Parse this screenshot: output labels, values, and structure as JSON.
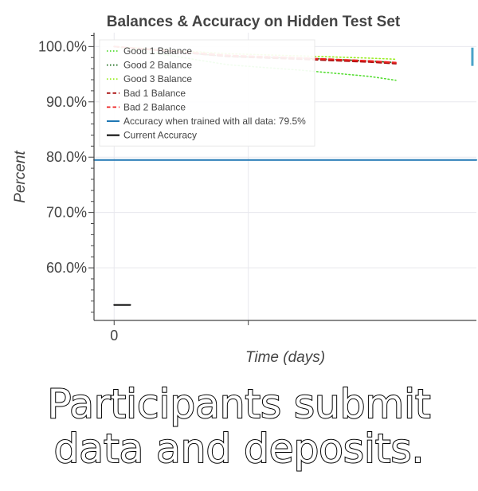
{
  "caption": {
    "line1": "Participants submit",
    "line2": "data and deposits."
  },
  "chart_data": {
    "type": "line",
    "title": "Balances & Accuracy on Hidden Test Set",
    "xlabel": "Time (days)",
    "ylabel": "Percent",
    "xlim": [
      -0.15,
      2.7
    ],
    "ylim": [
      50.5,
      102.5
    ],
    "x_ticks": [
      {
        "value": 0,
        "label": "0"
      }
    ],
    "x_gridlines": [
      0,
      1
    ],
    "y_ticks": [
      {
        "value": 60,
        "label": "60.0%"
      },
      {
        "value": 70,
        "label": "70.0%"
      },
      {
        "value": 80,
        "label": "80.0%"
      },
      {
        "value": 90,
        "label": "90.0%"
      },
      {
        "value": 100,
        "label": "100.0%"
      }
    ],
    "grid": true,
    "legend_position": "top-left",
    "series": [
      {
        "name": "Good 1 Balance",
        "style": "dotted",
        "color": "#55dd33",
        "x": [
          0,
          0.85,
          1.4,
          1.9,
          2.1
        ],
        "y": [
          100,
          96.7,
          95.7,
          94.6,
          93.9
        ]
      },
      {
        "name": "Good 2 Balance",
        "style": "dotted",
        "color": "#1a6b1a",
        "x": [
          0,
          0.85,
          1.4,
          1.9,
          2.1
        ],
        "y": [
          100,
          98.2,
          97.9,
          97.4,
          97.1
        ]
      },
      {
        "name": "Good 3 Balance",
        "style": "dotted",
        "color": "#99ee22",
        "x": [
          0,
          0.85,
          1.4,
          1.9,
          2.1
        ],
        "y": [
          100,
          98.7,
          98.3,
          97.9,
          97.7
        ]
      },
      {
        "name": "Bad 1 Balance",
        "style": "dashed",
        "color": "#aa1111",
        "x": [
          0,
          0.85,
          1.4,
          1.9,
          2.1
        ],
        "y": [
          100,
          98.2,
          97.7,
          97.2,
          96.9
        ]
      },
      {
        "name": "Bad 2 Balance",
        "style": "dashed",
        "color": "#ee2222",
        "x": [
          0,
          0.85,
          1.4,
          1.9,
          2.1
        ],
        "y": [
          100,
          98.4,
          97.9,
          97.4,
          97.1
        ]
      },
      {
        "name": "Accuracy when trained with all data: 79.5%",
        "style": "solid",
        "color": "#1f77b4",
        "x": [
          -0.15,
          2.7
        ],
        "y": [
          79.5,
          79.5
        ]
      },
      {
        "name": "Current Accuracy",
        "style": "solid",
        "color": "#000000",
        "x": [
          0,
          0.12
        ],
        "y": [
          53.3,
          53.3
        ]
      }
    ],
    "accent_marks": [
      {
        "color": "#4aa3c8",
        "x": 2.67,
        "y_range": [
          96.5,
          99.8
        ]
      }
    ],
    "colors": {
      "axis": "#444444",
      "grid": "#e8e8ee",
      "text": "#444444",
      "legend_border": "#e8e8e8"
    }
  }
}
